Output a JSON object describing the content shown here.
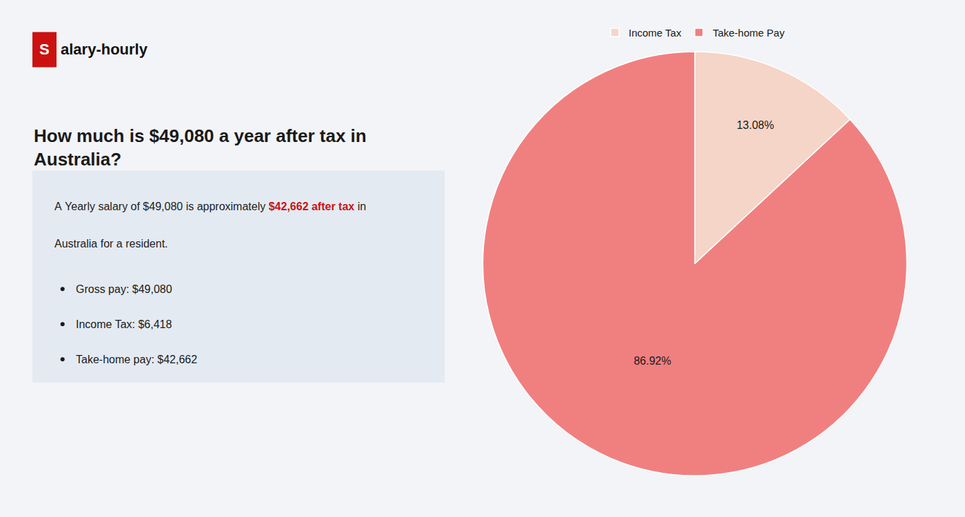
{
  "chart_data": {
    "type": "pie",
    "title": "How much is $49,080 a year after tax in\nAustralia?",
    "annotations": [
      "S",
      "alary-hourly",
      "A Yearly salary of $49,080 is approximately ",
      "$42,662 after tax",
      " in",
      "Australia for a resident.",
      "Gross pay: $49,080",
      "Income Tax: $6,418",
      "Take-home pay: $42,662"
    ],
    "categories": [
      "Income Tax",
      "Take-home Pay"
    ],
    "values": [
      13.08,
      86.92
    ],
    "value_labels": [
      "13.08%",
      "86.92%"
    ],
    "colors": [
      "#f5d5c8",
      "#f08080"
    ],
    "data_labels": true,
    "legend": "top"
  }
}
